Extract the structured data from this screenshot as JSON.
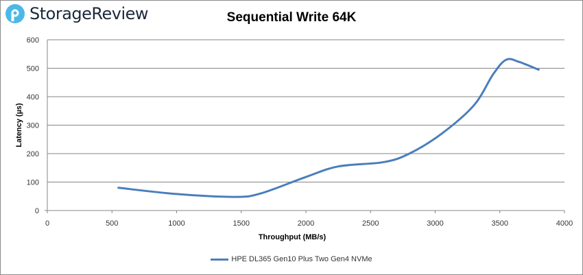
{
  "logo": {
    "text": "StorageReview",
    "color": "#4cb8e8",
    "text_color": "#1b2a3a"
  },
  "chart_data": {
    "type": "line",
    "title": "Sequential Write 64K",
    "xlabel": "Throughput (MB/s)",
    "ylabel": "Latency (µs)",
    "xlim": [
      0,
      4000
    ],
    "ylim": [
      0,
      600
    ],
    "xticks": [
      0,
      500,
      1000,
      1500,
      2000,
      2500,
      3000,
      3500,
      4000
    ],
    "yticks": [
      0,
      100,
      200,
      300,
      400,
      500,
      600
    ],
    "grid": "horizontal",
    "legend_position": "bottom",
    "series": [
      {
        "name": "HPE DL365 Gen10 Plus Two Gen4 NVMe",
        "color": "#4a7ebb",
        "x": [
          550,
          1000,
          1450,
          1650,
          2000,
          2250,
          2600,
          2800,
          3050,
          3300,
          3450,
          3550,
          3650,
          3800
        ],
        "y": [
          80,
          58,
          48,
          60,
          118,
          155,
          170,
          200,
          270,
          370,
          480,
          530,
          522,
          495
        ]
      }
    ]
  }
}
